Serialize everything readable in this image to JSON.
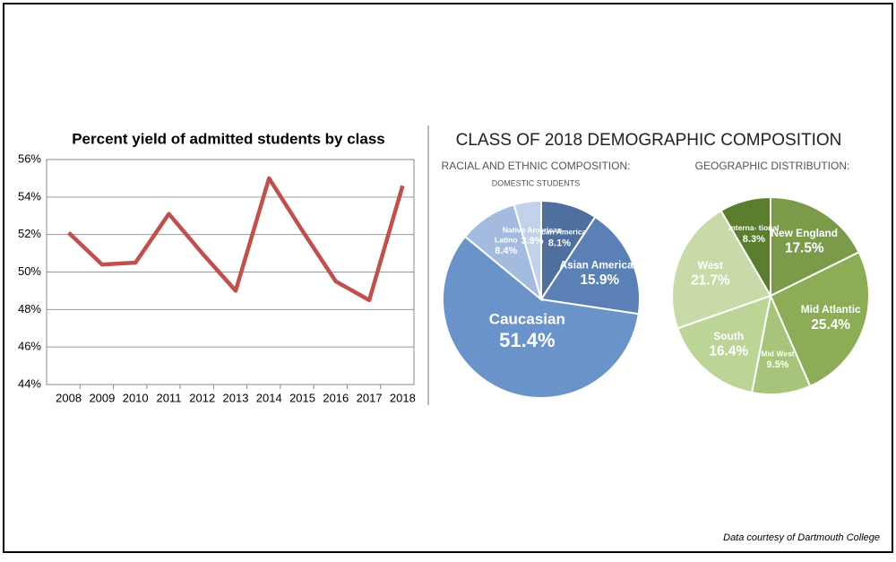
{
  "heading": "CLASS OF 2018 DEMOGRAPHIC COMPOSITION",
  "credit": "Data courtesy of Dartmouth College",
  "chart_data": [
    {
      "type": "line",
      "title": "Percent yield of admitted students by class",
      "categories": [
        "2008",
        "2009",
        "2010",
        "2011",
        "2012",
        "2013",
        "2014",
        "2015",
        "2016",
        "2017",
        "2018"
      ],
      "values": [
        52.1,
        50.4,
        50.5,
        53.1,
        51.0,
        49.0,
        55.0,
        52.2,
        49.5,
        48.5,
        54.6
      ],
      "color": "#c0504d",
      "ylim": [
        44,
        56
      ],
      "yticks": [
        {
          "value": 44,
          "label": "44%"
        },
        {
          "value": 46,
          "label": "46%"
        },
        {
          "value": 48,
          "label": "48%"
        },
        {
          "value": 50,
          "label": "50%"
        },
        {
          "value": 52,
          "label": "52%"
        },
        {
          "value": 54,
          "label": "54%"
        },
        {
          "value": 56,
          "label": "56%"
        }
      ],
      "grid": true
    },
    {
      "type": "pie",
      "title": "RACIAL AND ETHNIC COMPOSITION:",
      "subtitle": "DOMESTIC STUDENTS",
      "categories": [
        "African American",
        "Asian American",
        "Caucasian",
        "Latino",
        "Native American"
      ],
      "values": [
        8.1,
        15.9,
        51.4,
        8.4,
        3.9
      ],
      "value_labels": [
        "8.1%",
        "15.9%",
        "51.4%",
        "8.4%",
        "3.9%"
      ],
      "colors": [
        "#4f6f9f",
        "#5b80b6",
        "#6a93c9",
        "#a3bbdf",
        "#c3d1e9"
      ]
    },
    {
      "type": "pie",
      "title": "GEOGRAPHIC DISTRIBUTION:",
      "categories": [
        "New England",
        "Mid Atlantic",
        "Mid West",
        "South",
        "West",
        "Interna- tional"
      ],
      "values": [
        17.5,
        25.4,
        9.5,
        16.4,
        21.7,
        8.3
      ],
      "value_labels": [
        "17.5%",
        "25.4%",
        "9.5%",
        "16.4%",
        "21.7%",
        "8.3%"
      ],
      "colors": [
        "#7b9b4b",
        "#8cac56",
        "#a7c47a",
        "#bcd495",
        "#c7daa8",
        "#5a7d2e"
      ]
    }
  ]
}
